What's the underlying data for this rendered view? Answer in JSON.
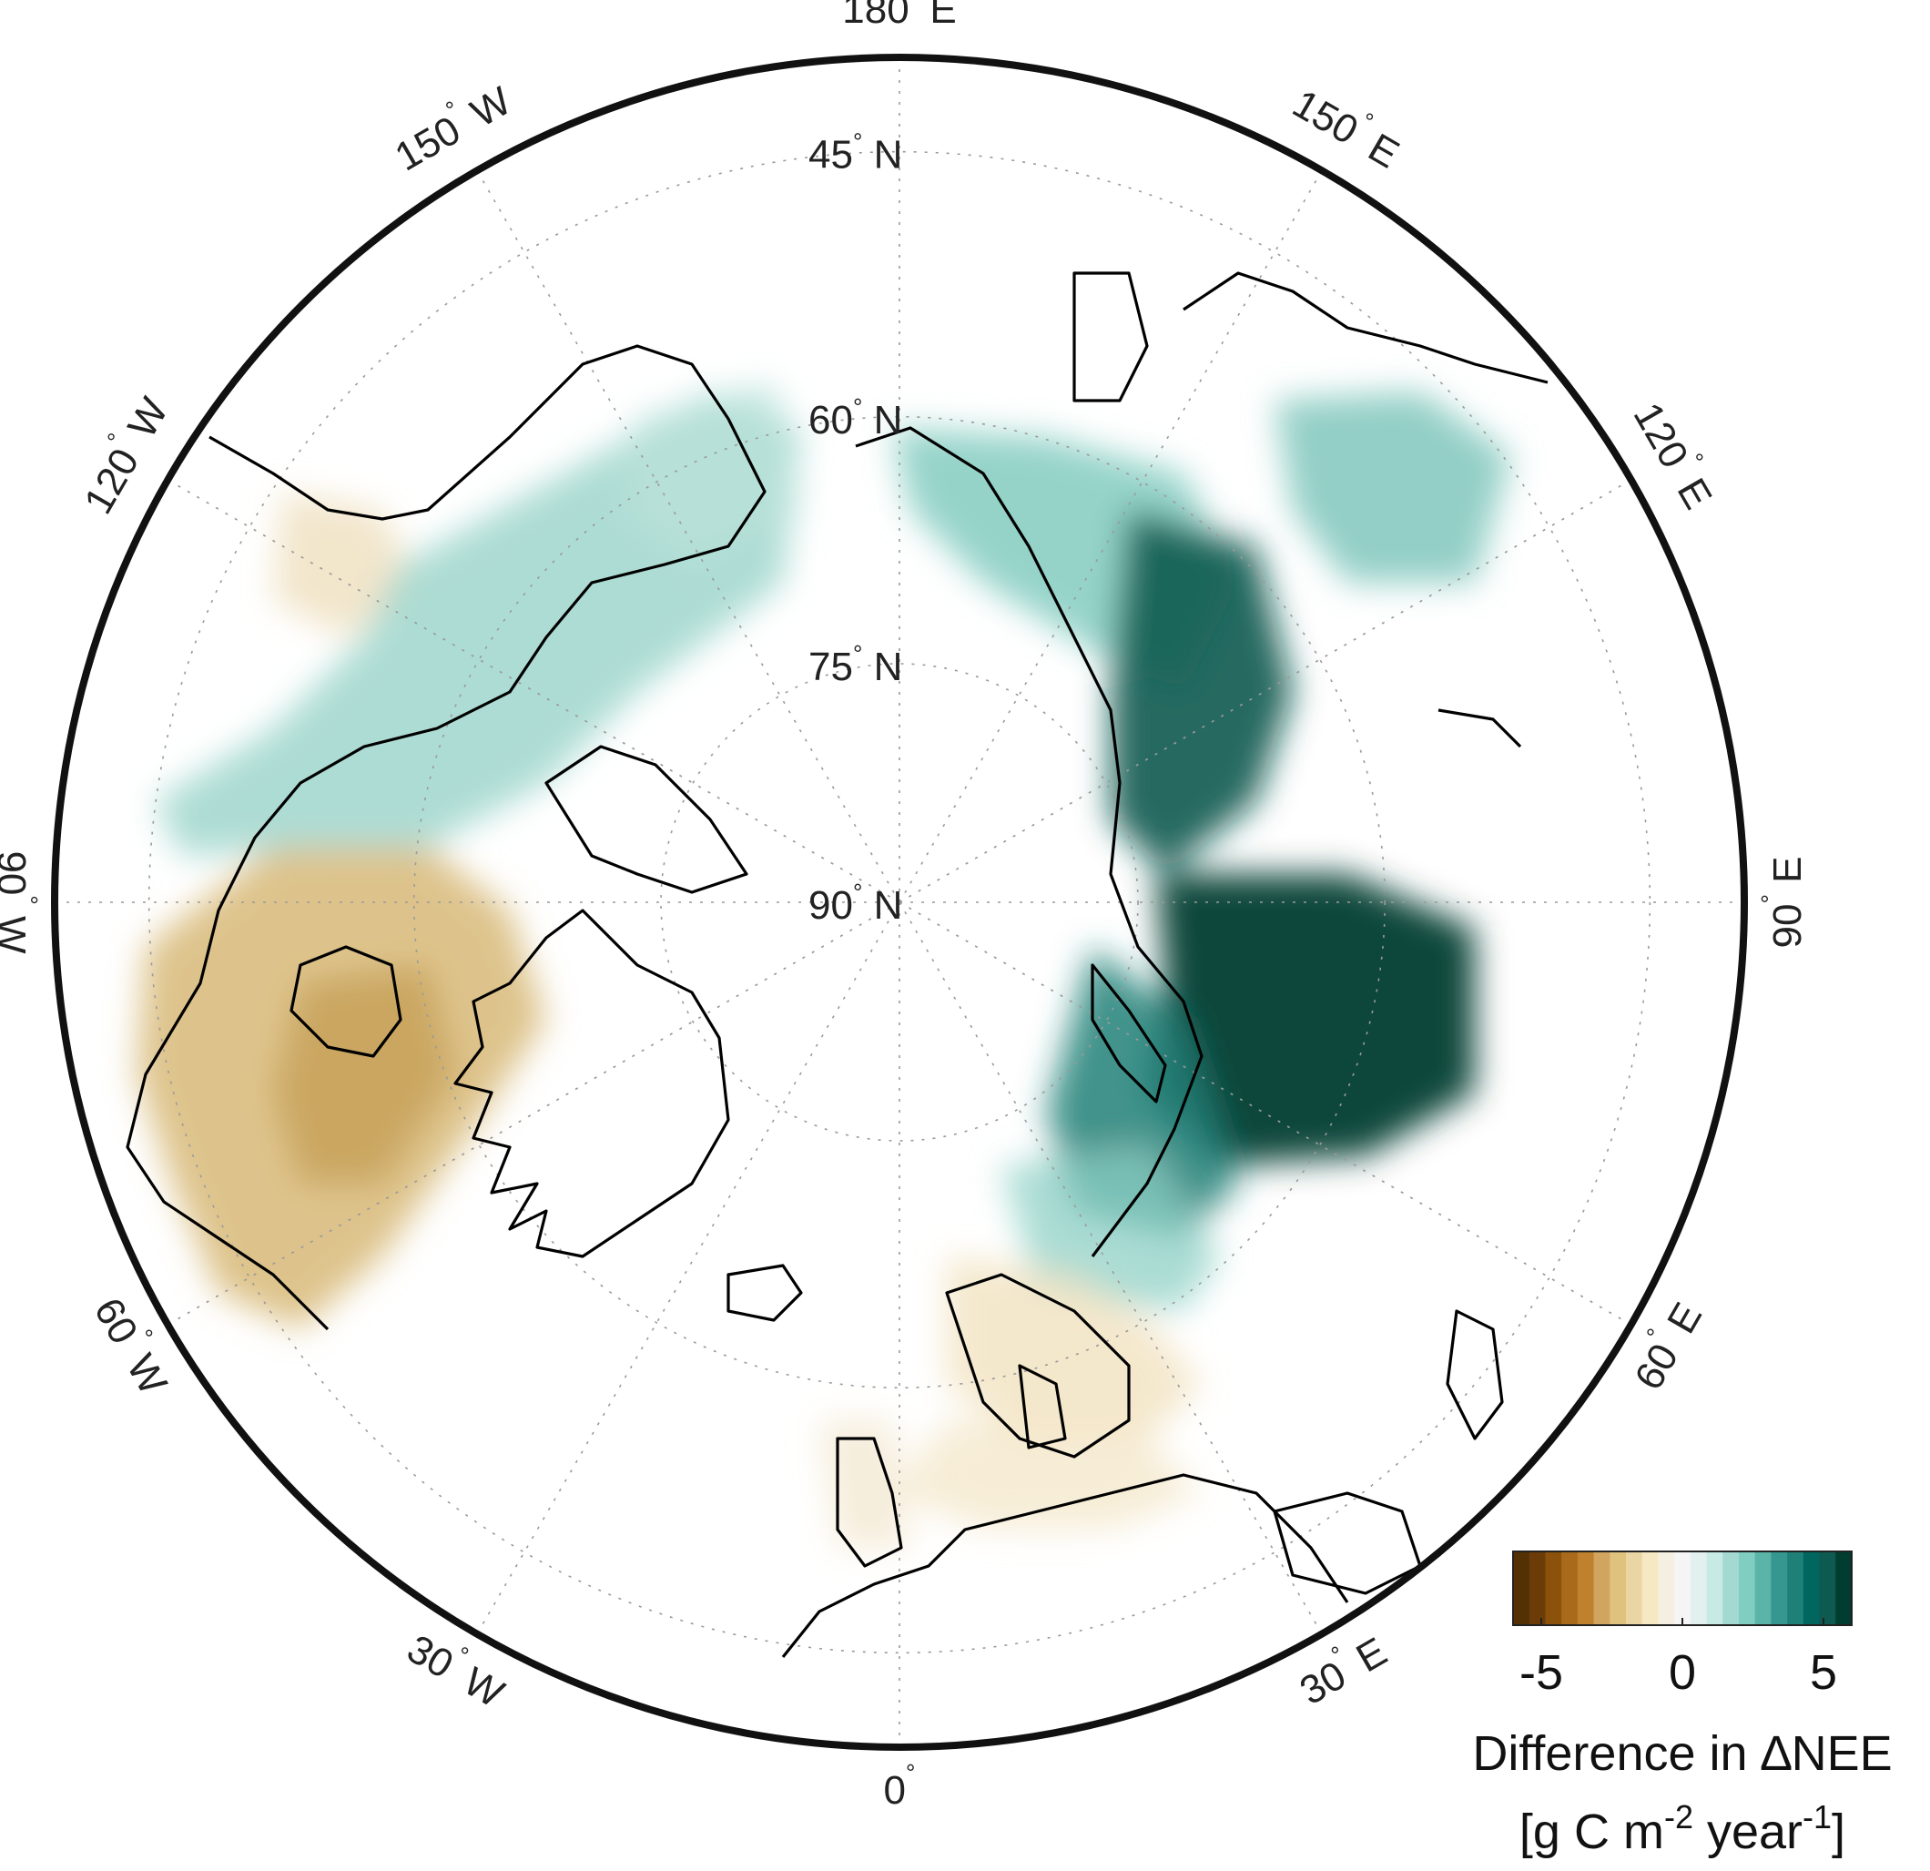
{
  "map": {
    "projection": "north polar stereographic",
    "lat_labels": [
      {
        "text": "45",
        "suffix": "N",
        "lat": 45
      },
      {
        "text": "60",
        "suffix": "N",
        "lat": 60
      },
      {
        "text": "75",
        "suffix": "N",
        "lat": 75
      },
      {
        "text": "90",
        "suffix": "N",
        "lat": 90
      }
    ],
    "lon_labels": [
      {
        "text": "180",
        "suffix": "E",
        "lon": 180
      },
      {
        "text": "150",
        "suffix": "E",
        "lon": 150
      },
      {
        "text": "120",
        "suffix": "E",
        "lon": 120
      },
      {
        "text": "90",
        "suffix": "E",
        "lon": 90
      },
      {
        "text": "60",
        "suffix": "E",
        "lon": 60
      },
      {
        "text": "30",
        "suffix": "E",
        "lon": 30
      },
      {
        "text": "0",
        "suffix": "",
        "lon": 0
      },
      {
        "text": "30",
        "suffix": "W",
        "lon": -30
      },
      {
        "text": "60",
        "suffix": "W",
        "lon": -60
      },
      {
        "text": "90",
        "suffix": "W",
        "lon": -90
      },
      {
        "text": "120",
        "suffix": "W",
        "lon": -120
      },
      {
        "text": "150",
        "suffix": "W",
        "lon": -150
      }
    ],
    "degree_symbol": "°"
  },
  "colorbar": {
    "ticks": [
      "-5",
      "0",
      "5"
    ],
    "tick_values": [
      -5,
      0,
      5
    ],
    "range": [
      -6,
      6
    ],
    "title_line1": "Difference in ∆NEE",
    "title_line2_parts": [
      "[g C m",
      "-2",
      " year",
      "-1",
      "]"
    ],
    "colors": [
      "#543005",
      "#6b3c08",
      "#8c510a",
      "#a96a1c",
      "#bf812d",
      "#d1a55f",
      "#dfc27d",
      "#ead6a4",
      "#f6e8c3",
      "#f5efe2",
      "#f5f5f5",
      "#e2f0ef",
      "#c7eae5",
      "#a3d9d0",
      "#80cdc1",
      "#5ab4a8",
      "#35978f",
      "#1f8077",
      "#01665e",
      "#0f5a50",
      "#003c30"
    ]
  }
}
